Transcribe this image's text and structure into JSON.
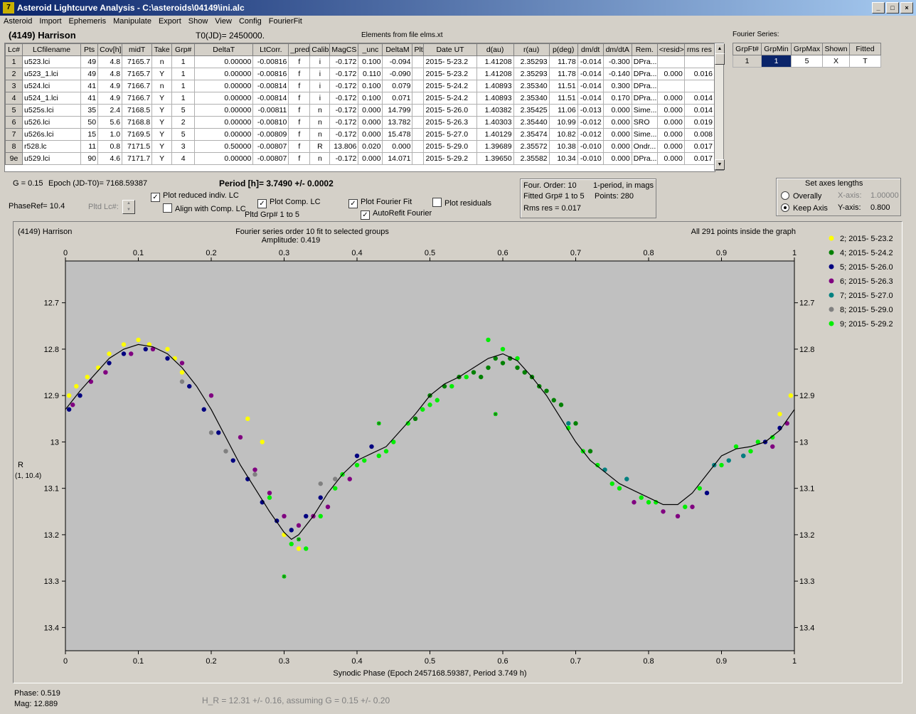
{
  "window": {
    "title": "Asteroid Lightcurve Analysis - C:\\asteroids\\04149\\ini.alc",
    "icon_label": "7",
    "minimize": "_",
    "restore": "□",
    "close": "×"
  },
  "menu": [
    "Asteroid",
    "Import",
    "Ephemeris",
    "Manipulate",
    "Export",
    "Show",
    "View",
    "Config",
    "FourierFit"
  ],
  "header": {
    "object": "(4149) Harrison",
    "t0": "T0(JD)= 2450000.",
    "elements": "Elements from file elms.xt"
  },
  "lc_table": {
    "columns": [
      "Lc#",
      "LCfilename",
      "Pts",
      "Cov[h]",
      "midT",
      "Take",
      "Grp#",
      "DeltaT",
      "LtCorr.",
      "_pred.",
      "Calib.",
      "MagCS",
      "_unc",
      "DeltaM",
      "Plt",
      "Date UT",
      "d(au)",
      "r(au)",
      "p(deg)",
      "dm/dt",
      "dm/dtA",
      "Rem.",
      "<resid>",
      "rms res"
    ],
    "rows": [
      [
        "1",
        "u523.lci",
        "49",
        "4.8",
        "7165.7",
        "n",
        "1",
        "0.00000",
        "-0.00816",
        "f",
        "i",
        "-0.172",
        "0.100",
        "-0.094",
        "",
        "2015- 5-23.2",
        "1.41208",
        "2.35293",
        "11.78",
        "-0.014",
        "-0.300",
        "DPra...",
        "",
        ""
      ],
      [
        "2",
        "u523_1.lci",
        "49",
        "4.8",
        "7165.7",
        "Y",
        "1",
        "0.00000",
        "-0.00816",
        "f",
        "i",
        "-0.172",
        "0.110",
        "-0.090",
        "",
        "2015- 5-23.2",
        "1.41208",
        "2.35293",
        "11.78",
        "-0.014",
        "-0.140",
        "DPra...",
        "0.000",
        "0.016"
      ],
      [
        "3",
        "u524.lci",
        "41",
        "4.9",
        "7166.7",
        "n",
        "1",
        "0.00000",
        "-0.00814",
        "f",
        "i",
        "-0.172",
        "0.100",
        "0.079",
        "",
        "2015- 5-24.2",
        "1.40893",
        "2.35340",
        "11.51",
        "-0.014",
        "0.300",
        "DPra...",
        "",
        ""
      ],
      [
        "4",
        "u524_1.lci",
        "41",
        "4.9",
        "7166.7",
        "Y",
        "1",
        "0.00000",
        "-0.00814",
        "f",
        "i",
        "-0.172",
        "0.100",
        "0.071",
        "",
        "2015- 5-24.2",
        "1.40893",
        "2.35340",
        "11.51",
        "-0.014",
        "0.170",
        "DPra...",
        "0.000",
        "0.014"
      ],
      [
        "5",
        "u525s.lci",
        "35",
        "2.4",
        "7168.5",
        "Y",
        "5",
        "0.00000",
        "-0.00811",
        "f",
        "n",
        "-0.172",
        "0.000",
        "14.799",
        "",
        "2015- 5-26.0",
        "1.40382",
        "2.35425",
        "11.06",
        "-0.013",
        "0.000",
        "Sime...",
        "0.000",
        "0.014"
      ],
      [
        "6",
        "u526.lci",
        "50",
        "5.6",
        "7168.8",
        "Y",
        "2",
        "0.00000",
        "-0.00810",
        "f",
        "n",
        "-0.172",
        "0.000",
        "13.782",
        "",
        "2015- 5-26.3",
        "1.40303",
        "2.35440",
        "10.99",
        "-0.012",
        "0.000",
        "SRO",
        "0.000",
        "0.019"
      ],
      [
        "7",
        "u526s.lci",
        "15",
        "1.0",
        "7169.5",
        "Y",
        "5",
        "0.00000",
        "-0.00809",
        "f",
        "n",
        "-0.172",
        "0.000",
        "15.478",
        "",
        "2015- 5-27.0",
        "1.40129",
        "2.35474",
        "10.82",
        "-0.012",
        "0.000",
        "Sime...",
        "0.000",
        "0.008"
      ],
      [
        "8",
        "r528.lc",
        "11",
        "0.8",
        "7171.5",
        "Y",
        "3",
        "0.50000",
        "-0.00807",
        "f",
        "R",
        "13.806",
        "0.020",
        "0.000",
        "",
        "2015- 5-29.0",
        "1.39689",
        "2.35572",
        "10.38",
        "-0.010",
        "0.000",
        "Ondr...",
        "0.000",
        "0.017"
      ],
      [
        "9e",
        "u529.lci",
        "90",
        "4.6",
        "7171.7",
        "Y",
        "4",
        "0.00000",
        "-0.00807",
        "f",
        "n",
        "-0.172",
        "0.000",
        "14.071",
        "",
        "2015- 5-29.2",
        "1.39650",
        "2.35582",
        "10.34",
        "-0.010",
        "0.000",
        "DPra...",
        "0.000",
        "0.017"
      ]
    ]
  },
  "fourier_table": {
    "title": "Fourier Series:",
    "columns": [
      "GrpFt#",
      "GrpMin",
      "GrpMax",
      "Shown",
      "Fitted"
    ],
    "row": [
      "1",
      "1",
      "5",
      "X",
      "T"
    ]
  },
  "controls": {
    "g": "G = 0.15",
    "epoch": "Epoch (JD-T0)= 7168.59387",
    "period": "Period [h]= 3.7490 +/- 0.0002",
    "phase_ref": "PhaseRef= 10.4",
    "pltd_lc": "Pltd Lc#:",
    "plot_reduced": "Plot reduced indiv. LC",
    "align_comp": "Align with Comp. LC",
    "plot_comp": "Plot Comp. LC",
    "pltd_grp": "Pltd Grp#  1   to   5",
    "plot_fourier": "Plot Fourier Fit",
    "autorefit": "AutoRefit Fourier",
    "plot_residuals": "Plot residuals",
    "info_order": "Four. Order: 10",
    "info_period": "1-period, in mags",
    "info_fitted": "Fitted Grp# 1 to 5",
    "info_points": "Points: 280",
    "info_rms": "Rms res    = 0.017",
    "axes_title": "Set axes lengths",
    "overally": "Overally",
    "keep_axis": "Keep Axis",
    "xaxis_label": "X-axis:",
    "xaxis_val": "1.00000",
    "yaxis_label": "Y-axis:",
    "yaxis_val": "0.800"
  },
  "checks": {
    "plot_reduced": true,
    "align_comp": false,
    "plot_comp": true,
    "plot_fourier": true,
    "autorefit": true,
    "plot_residuals": false
  },
  "plot": {
    "top_left": "(4149) Harrison",
    "subtitle": "Fourier series order 10 fit to selected groups",
    "amplitude": "Amplitude: 0.419",
    "top_right": "All 291 points inside the graph",
    "ylabel1": "R",
    "ylabel2": "(1, 10.4)",
    "xlabel": "Synodic Phase (Epoch 2457168.59387, Period 3.749 h)"
  },
  "status": {
    "phase": "Phase:  0.519",
    "mag": "Mag:   12.889",
    "hr": "H_R = 12.31 +/- 0.16, assuming G = 0.15 +/- 0.20"
  },
  "chart_data": {
    "type": "scatter",
    "xlabel": "Synodic Phase (Epoch 2457168.59387, Period 3.749 h)",
    "ylabel": "R",
    "xlim": [
      0.0,
      1.0
    ],
    "ylim": [
      13.45,
      12.61
    ],
    "y_inverted": true,
    "x_ticks": [
      0.0,
      0.1,
      0.2,
      0.3,
      0.4,
      0.5,
      0.6,
      0.7,
      0.8,
      0.9,
      1.0
    ],
    "y_ticks": [
      12.7,
      12.8,
      12.9,
      13.0,
      13.1,
      13.2,
      13.3,
      13.4
    ],
    "legend_position": "right",
    "fourier_fit": {
      "x": [
        0.0,
        0.02,
        0.04,
        0.06,
        0.08,
        0.1,
        0.12,
        0.14,
        0.16,
        0.18,
        0.2,
        0.22,
        0.24,
        0.26,
        0.28,
        0.3,
        0.31,
        0.32,
        0.34,
        0.36,
        0.38,
        0.4,
        0.42,
        0.44,
        0.46,
        0.48,
        0.5,
        0.52,
        0.54,
        0.56,
        0.58,
        0.6,
        0.62,
        0.64,
        0.66,
        0.68,
        0.7,
        0.72,
        0.74,
        0.76,
        0.78,
        0.8,
        0.82,
        0.84,
        0.86,
        0.88,
        0.9,
        0.92,
        0.94,
        0.96,
        0.98,
        1.0
      ],
      "y": [
        12.93,
        12.89,
        12.855,
        12.82,
        12.8,
        12.79,
        12.795,
        12.81,
        12.84,
        12.88,
        12.93,
        12.99,
        13.05,
        13.1,
        13.15,
        13.195,
        13.21,
        13.2,
        13.16,
        13.11,
        13.07,
        13.04,
        13.025,
        13.01,
        12.975,
        12.94,
        12.9,
        12.875,
        12.86,
        12.84,
        12.82,
        12.81,
        12.825,
        12.86,
        12.9,
        12.95,
        13.0,
        13.04,
        13.065,
        13.09,
        13.105,
        13.12,
        13.135,
        13.135,
        13.11,
        13.07,
        13.03,
        13.015,
        13.01,
        13.0,
        12.975,
        12.93
      ]
    },
    "series": [
      {
        "name": "2; 2015- 5-23.2",
        "color": "#ffff00",
        "marker": "dot",
        "x": [
          0.005,
          0.015,
          0.03,
          0.045,
          0.06,
          0.08,
          0.1,
          0.115,
          0.14,
          0.15,
          0.16,
          0.25,
          0.27,
          0.3,
          0.32,
          0.98,
          0.995
        ],
        "y": [
          12.9,
          12.88,
          12.86,
          12.84,
          12.81,
          12.79,
          12.78,
          12.79,
          12.8,
          12.82,
          12.85,
          12.95,
          13.0,
          13.2,
          13.23,
          12.94,
          12.9
        ]
      },
      {
        "name": "4; 2015- 5-24.2",
        "color": "#008000",
        "marker": "dot",
        "x": [
          0.48,
          0.5,
          0.52,
          0.54,
          0.56,
          0.58,
          0.6,
          0.61,
          0.62,
          0.64,
          0.66,
          0.68,
          0.7,
          0.72,
          0.57,
          0.59,
          0.63,
          0.65,
          0.67
        ],
        "y": [
          12.95,
          12.9,
          12.88,
          12.86,
          12.85,
          12.84,
          12.83,
          12.82,
          12.84,
          12.86,
          12.89,
          12.92,
          12.96,
          13.02,
          12.86,
          12.82,
          12.85,
          12.88,
          12.91
        ]
      },
      {
        "name": "5; 2015- 5-26.0",
        "color": "#000080",
        "marker": "dot",
        "x": [
          0.005,
          0.02,
          0.06,
          0.08,
          0.11,
          0.14,
          0.17,
          0.19,
          0.21,
          0.23,
          0.25,
          0.27,
          0.29,
          0.31,
          0.33,
          0.35,
          0.4,
          0.42,
          0.88,
          0.96,
          0.98
        ],
        "y": [
          12.93,
          12.9,
          12.83,
          12.81,
          12.8,
          12.82,
          12.88,
          12.93,
          12.98,
          13.04,
          13.08,
          13.13,
          13.17,
          13.19,
          13.16,
          13.12,
          13.03,
          13.01,
          13.11,
          13.0,
          12.97
        ]
      },
      {
        "name": "6; 2015- 5-26.3",
        "color": "#800080",
        "marker": "dot",
        "x": [
          0.01,
          0.035,
          0.055,
          0.09,
          0.12,
          0.16,
          0.2,
          0.24,
          0.26,
          0.28,
          0.3,
          0.32,
          0.34,
          0.36,
          0.39,
          0.78,
          0.82,
          0.84,
          0.86,
          0.93,
          0.97,
          0.99
        ],
        "y": [
          12.92,
          12.87,
          12.85,
          12.81,
          12.8,
          12.83,
          12.9,
          12.99,
          13.06,
          13.11,
          13.16,
          13.18,
          13.16,
          13.14,
          13.08,
          13.13,
          13.15,
          13.16,
          13.14,
          13.03,
          13.01,
          12.96
        ]
      },
      {
        "name": "7; 2015- 5-27.0",
        "color": "#008080",
        "marker": "dot",
        "x": [
          0.69,
          0.74,
          0.77,
          0.89,
          0.91,
          0.93
        ],
        "y": [
          12.96,
          13.06,
          13.08,
          13.05,
          13.04,
          13.03
        ]
      },
      {
        "name": "8; 2015- 5-29.0",
        "color": "#808080",
        "marker": "dot",
        "x": [
          0.16,
          0.2,
          0.22,
          0.26,
          0.35,
          0.37
        ],
        "y": [
          12.87,
          12.98,
          13.02,
          13.07,
          13.09,
          13.08
        ]
      },
      {
        "name": "9; 2015- 5-29.2",
        "color": "#00ee00",
        "marker": "dot",
        "x": [
          0.28,
          0.31,
          0.33,
          0.35,
          0.37,
          0.38,
          0.4,
          0.41,
          0.43,
          0.44,
          0.45,
          0.47,
          0.49,
          0.5,
          0.51,
          0.53,
          0.55,
          0.58,
          0.6,
          0.62,
          0.69,
          0.71,
          0.73,
          0.75,
          0.76,
          0.79,
          0.8,
          0.81,
          0.85,
          0.87,
          0.9,
          0.92,
          0.94,
          0.95,
          0.97
        ],
        "y": [
          13.12,
          13.22,
          13.23,
          13.16,
          13.1,
          13.07,
          13.05,
          13.04,
          13.03,
          13.02,
          13.0,
          12.96,
          12.93,
          12.92,
          12.91,
          12.88,
          12.86,
          12.78,
          12.8,
          12.82,
          12.97,
          13.02,
          13.05,
          13.09,
          13.1,
          13.12,
          13.13,
          13.13,
          13.14,
          13.1,
          13.05,
          13.01,
          13.02,
          13.0,
          12.99
        ]
      }
    ],
    "crosses": {
      "color": "#00ee00",
      "x": [
        0.3,
        0.32,
        0.43,
        0.59
      ],
      "y": [
        13.29,
        13.21,
        12.96,
        12.94
      ]
    }
  }
}
